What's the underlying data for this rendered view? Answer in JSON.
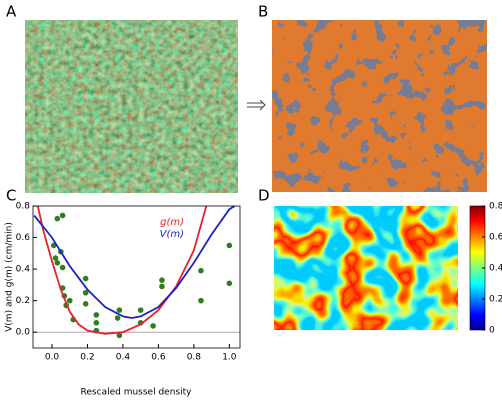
{
  "panel_labels": [
    "A",
    "B",
    "C",
    "D"
  ],
  "chart_data": [
    {
      "type": "scatter",
      "x_label": "Rescaled mussel density",
      "y_label": "V(m) and g(m) (cm/min)",
      "xlim": [
        -0.107,
        1.06
      ],
      "ylim": [
        -0.1,
        0.8
      ],
      "xticks": [
        {
          "value": 0,
          "label": "0.0"
        },
        0.2,
        0.4,
        0.6,
        0.8,
        {
          "value": 1,
          "label": "1.0"
        }
      ],
      "yticks": [
        {
          "value": 0,
          "label": "0.0"
        },
        0.2,
        0.4,
        0.6,
        0.8
      ],
      "zero_line": true,
      "series": [
        {
          "kind": "points",
          "color": "#2e7d1f",
          "x": [
            0.03,
            0.06,
            0.01,
            0.02,
            0.03,
            0.05,
            0.06,
            0.06,
            0.07,
            0.08,
            0.1,
            0.12,
            0.19,
            0.19,
            0.19,
            0.25,
            0.25,
            0.25,
            0.38,
            0.37,
            0.38,
            0.5,
            0.5,
            0.57,
            0.62,
            0.62,
            0.84,
            0.84,
            1.0,
            1.0
          ],
          "values": [
            0.72,
            0.74,
            0.55,
            0.47,
            0.44,
            0.51,
            0.41,
            0.28,
            0.23,
            0.17,
            0.2,
            0.08,
            0.25,
            0.18,
            0.34,
            0.01,
            0.06,
            0.11,
            -0.02,
            0.09,
            0.14,
            0.14,
            0.06,
            0.04,
            0.33,
            0.29,
            0.2,
            0.39,
            0.55,
            0.31
          ]
        },
        {
          "kind": "line",
          "name": "g(m)",
          "color": "#e8202a",
          "x": [
            -0.08,
            -0.05,
            0,
            0.05,
            0.1,
            0.15,
            0.2,
            0.3,
            0.4,
            0.5,
            0.6,
            0.7,
            0.8,
            0.87
          ],
          "values": [
            0.8,
            0.65,
            0.45,
            0.27,
            0.13,
            0.05,
            0.01,
            -0.01,
            0.0,
            0.05,
            0.14,
            0.29,
            0.52,
            0.8
          ]
        },
        {
          "kind": "line",
          "name": "V(m)",
          "color": "#1a22c8",
          "x": [
            -0.1,
            0,
            0.1,
            0.2,
            0.3,
            0.4,
            0.45,
            0.5,
            0.6,
            0.7,
            0.8,
            0.9,
            1.0,
            1.03
          ],
          "values": [
            0.74,
            0.6,
            0.42,
            0.27,
            0.16,
            0.1,
            0.09,
            0.1,
            0.16,
            0.28,
            0.44,
            0.62,
            0.78,
            0.8
          ]
        }
      ]
    },
    {
      "type": "colorbar",
      "clim": [
        0,
        0.8
      ],
      "cticks": [
        0,
        0.2,
        0.4,
        0.6,
        0.8
      ]
    }
  ]
}
